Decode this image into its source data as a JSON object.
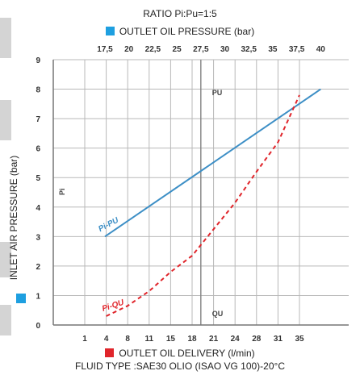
{
  "chart_data": {
    "type": "line",
    "title": "RATIO Pi:Pu=1:5",
    "top_axis_label": "OUTLET OIL PRESSURE (bar)",
    "bottom_axis_label": "OUTLET OIL DELIVERY (l/min)",
    "ylabel": "INLET AIR PRESSURE (bar)",
    "footer": "FLUID TYPE :SAE30 OLIO (ISAO VG 100)-20°C",
    "top_ticks": [
      "17,5",
      "20",
      "22,5",
      "25",
      "27,5",
      "30",
      "32,5",
      "35",
      "37,5",
      "40"
    ],
    "bottom_ticks": [
      "1",
      "4",
      "8",
      "11",
      "15",
      "18",
      "21",
      "24",
      "28",
      "31",
      "35"
    ],
    "y_ticks": [
      "0",
      "1",
      "2",
      "3",
      "4",
      "5",
      "6",
      "7",
      "8",
      "9"
    ],
    "ylim": [
      0,
      9
    ],
    "grid": true,
    "colors": {
      "pu": "#3d8fc6",
      "qu": "#e0252b",
      "grid": "#b8b8b8"
    },
    "annotations": {
      "pu": "PU",
      "qu": "QU",
      "pi": "Pi"
    },
    "series": [
      {
        "name": "Pi-PU",
        "axis": "top",
        "style": "solid",
        "x": [
          17.5,
          40
        ],
        "y": [
          3,
          8
        ]
      },
      {
        "name": "Pi-QU",
        "axis": "bottom",
        "style": "dashed",
        "x": [
          4,
          8,
          11,
          15,
          18,
          21,
          24,
          28,
          31,
          35
        ],
        "y": [
          0.3,
          0.65,
          1.15,
          1.8,
          2.35,
          3.25,
          4.15,
          5.2,
          6.2,
          7.8
        ]
      }
    ]
  }
}
